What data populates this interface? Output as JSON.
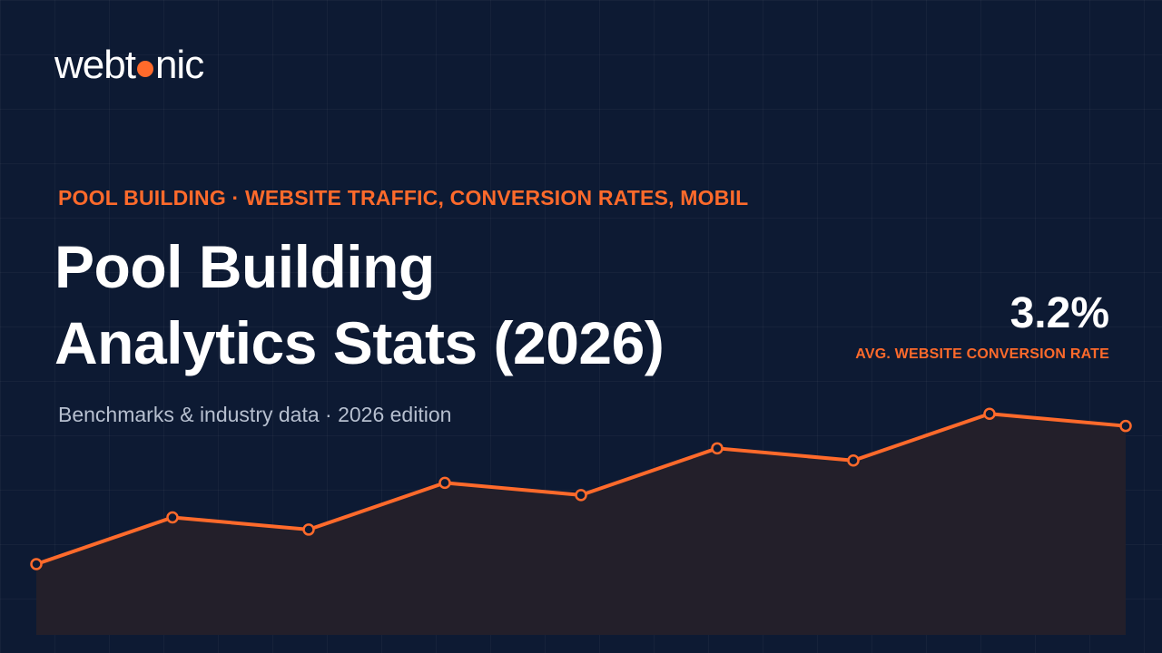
{
  "brand": {
    "name_part1": "webt",
    "name_part2": "nic",
    "accent": "#ff6a2b",
    "background": "#0d1a33"
  },
  "header": {
    "eyebrow": "POOL BUILDING · WEBSITE TRAFFIC, CONVERSION RATES, MOBIL",
    "title_line1": "Pool Building",
    "title_line2": "Analytics Stats (2026)",
    "subtitle": "Benchmarks & industry data · 2026 edition"
  },
  "stat": {
    "value": "3.2%",
    "label": "AVG. WEBSITE CONVERSION RATE"
  },
  "chart_data": {
    "type": "area",
    "values": [
      0.0,
      0.23,
      0.17,
      0.4,
      0.34,
      0.57,
      0.51,
      0.74,
      0.68
    ],
    "ylim": [
      0,
      1
    ],
    "line_color": "#ff6a2b",
    "fill_color": "#231f2a",
    "grid": true,
    "title": "",
    "xlabel": "",
    "ylabel": ""
  }
}
